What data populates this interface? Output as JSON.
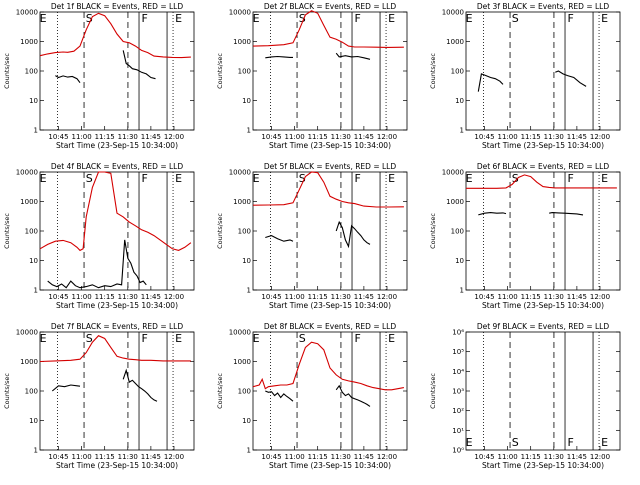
{
  "chart_data": [
    {
      "type": "line",
      "title": "Det 1f BLACK = Events, RED = LLD",
      "xlabel": "Start Time (23-Sep-15 10:34:00)",
      "ylabel": "Counts/sec",
      "yscale": "log",
      "ylim": [
        1,
        10000
      ],
      "xlim": [
        0,
        100
      ],
      "x_ticks": [
        "10:45",
        "11:00",
        "11:15",
        "11:30",
        "11:45",
        "12:00"
      ],
      "y_ticks": [
        "1",
        "10",
        "100",
        "1000",
        "10000"
      ],
      "markers": [
        "E",
        "S",
        "F",
        "E"
      ],
      "series": [
        {
          "name": "RED = LLD",
          "color": "#d40000",
          "x": [
            0,
            5,
            10,
            15,
            18,
            22,
            26,
            30,
            34,
            38,
            42,
            46,
            50,
            54,
            58,
            62,
            66,
            70,
            74,
            80,
            86,
            92,
            98
          ],
          "y": [
            330,
            380,
            420,
            440,
            430,
            470,
            700,
            2500,
            7000,
            9000,
            7500,
            4000,
            1800,
            1000,
            900,
            700,
            500,
            420,
            320,
            300,
            290,
            285,
            295
          ]
        },
        {
          "name": "BLACK = Events",
          "color": "#000000",
          "x": [
            10,
            12,
            15,
            18,
            21,
            24,
            26,
            null,
            54,
            56,
            58,
            60,
            63,
            66,
            69,
            72,
            75
          ],
          "y": [
            70,
            60,
            68,
            62,
            65,
            55,
            40,
            null,
            500,
            180,
            150,
            120,
            110,
            90,
            80,
            60,
            55
          ]
        }
      ]
    },
    {
      "type": "line",
      "title": "Det 2f BLACK = Events, RED = LLD",
      "xlabel": "Start Time (23-Sep-15 10:34:00)",
      "ylabel": "Counts/sec",
      "yscale": "log",
      "ylim": [
        1,
        10000
      ],
      "xlim": [
        0,
        100
      ],
      "x_ticks": [
        "10:45",
        "11:00",
        "11:15",
        "11:30",
        "11:45",
        "12:00"
      ],
      "y_ticks": [
        "1",
        "10",
        "100",
        "1000",
        "10000"
      ],
      "markers": [
        "E",
        "S",
        "F",
        "E"
      ],
      "series": [
        {
          "name": "RED = LLD",
          "color": "#d40000",
          "x": [
            0,
            10,
            20,
            26,
            30,
            34,
            38,
            42,
            46,
            50,
            54,
            58,
            62,
            66,
            72,
            80,
            88,
            98
          ],
          "y": [
            700,
            720,
            780,
            900,
            2500,
            8000,
            11000,
            9000,
            3500,
            1400,
            1200,
            950,
            700,
            650,
            650,
            640,
            630,
            640
          ]
        },
        {
          "name": "BLACK = Events",
          "color": "#000000",
          "x": [
            8,
            12,
            16,
            20,
            24,
            26,
            null,
            54,
            56,
            60,
            64,
            68,
            72,
            76
          ],
          "y": [
            280,
            300,
            310,
            300,
            290,
            290,
            null,
            400,
            300,
            330,
            300,
            310,
            280,
            250
          ]
        }
      ]
    },
    {
      "type": "line",
      "title": "Det 3f BLACK = Events, RED = LLD",
      "xlabel": "Start Time (23-Sep-15 10:34:00)",
      "ylabel": "Counts/sec",
      "yscale": "log",
      "ylim": [
        1,
        10000
      ],
      "xlim": [
        0,
        100
      ],
      "x_ticks": [
        "10:45",
        "11:00",
        "11:15",
        "11:30",
        "11:45",
        "12:00"
      ],
      "y_ticks": [
        "1",
        "10",
        "100",
        "1000",
        "10000"
      ],
      "markers": [
        "E",
        "S",
        "F",
        "E"
      ],
      "series": [
        {
          "name": "BLACK = Events",
          "color": "#000000",
          "x": [
            8,
            10,
            13,
            16,
            19,
            22,
            24,
            null,
            58,
            60,
            63,
            66,
            70,
            74,
            78
          ],
          "y": [
            20,
            80,
            70,
            60,
            55,
            45,
            35,
            null,
            90,
            100,
            80,
            70,
            60,
            40,
            30
          ]
        }
      ]
    },
    {
      "type": "line",
      "title": "Det 4f BLACK = Events, RED = LLD",
      "xlabel": "Start Time (23-Sep-15 10:34:00)",
      "ylabel": "Counts/sec",
      "yscale": "log",
      "ylim": [
        1,
        10000
      ],
      "xlim": [
        0,
        100
      ],
      "x_ticks": [
        "10:45",
        "11:00",
        "11:15",
        "11:30",
        "11:45",
        "12:00"
      ],
      "y_ticks": [
        "1",
        "10",
        "100",
        "1000",
        "10000"
      ],
      "markers": [
        "E",
        "S",
        "F",
        "E"
      ],
      "series": [
        {
          "name": "RED = LLD",
          "color": "#d40000",
          "x": [
            0,
            5,
            10,
            15,
            20,
            24,
            26,
            28,
            30,
            34,
            38,
            42,
            46,
            50,
            54,
            58,
            62,
            66,
            70,
            74,
            78,
            82,
            86,
            90,
            94,
            98
          ],
          "y": [
            25,
            35,
            45,
            48,
            40,
            28,
            22,
            25,
            300,
            3000,
            10000,
            10000,
            9000,
            400,
            300,
            200,
            150,
            110,
            90,
            70,
            50,
            35,
            25,
            22,
            28,
            40
          ]
        },
        {
          "name": "BLACK = Events",
          "color": "#000000",
          "x": [
            5,
            8,
            11,
            14,
            17,
            20,
            23,
            26,
            30,
            34,
            38,
            42,
            46,
            50,
            53,
            55,
            57,
            59,
            61,
            63,
            65,
            67,
            69
          ],
          "y": [
            2,
            1.5,
            1.3,
            1.6,
            1.2,
            2,
            1.4,
            1.2,
            1.3,
            1.5,
            1.2,
            1.4,
            1.3,
            1.6,
            1.5,
            50,
            12,
            8,
            4,
            3,
            1.8,
            2,
            1.5
          ]
        }
      ]
    },
    {
      "type": "line",
      "title": "Det 5f BLACK = Events, RED = LLD",
      "xlabel": "Start Time (23-Sep-15 10:34:00)",
      "ylabel": "Counts/sec",
      "yscale": "log",
      "ylim": [
        1,
        10000
      ],
      "xlim": [
        0,
        100
      ],
      "x_ticks": [
        "10:45",
        "11:00",
        "11:15",
        "11:30",
        "11:45",
        "12:00"
      ],
      "y_ticks": [
        "1",
        "10",
        "100",
        "1000",
        "10000"
      ],
      "markers": [
        "E",
        "S",
        "F",
        "E"
      ],
      "series": [
        {
          "name": "RED = LLD",
          "color": "#d40000",
          "x": [
            0,
            10,
            20,
            26,
            30,
            34,
            38,
            42,
            46,
            50,
            54,
            58,
            62,
            66,
            72,
            80,
            88,
            98
          ],
          "y": [
            750,
            760,
            780,
            900,
            2500,
            7000,
            10000,
            9500,
            4500,
            1500,
            1200,
            1000,
            900,
            850,
            700,
            650,
            650,
            660
          ]
        },
        {
          "name": "BLACK = Events",
          "color": "#000000",
          "x": [
            8,
            12,
            16,
            20,
            24,
            26,
            null,
            54,
            56,
            58,
            60,
            62,
            64,
            66,
            68,
            70,
            72,
            74,
            76
          ],
          "y": [
            60,
            70,
            55,
            45,
            50,
            45,
            null,
            100,
            200,
            130,
            50,
            30,
            150,
            120,
            90,
            70,
            50,
            40,
            35
          ]
        }
      ]
    },
    {
      "type": "line",
      "title": "Det 6f BLACK = Events, RED = LLD",
      "xlabel": "Start Time (23-Sep-15 10:34:00)",
      "ylabel": "Counts/sec",
      "yscale": "log",
      "ylim": [
        1,
        10000
      ],
      "xlim": [
        0,
        100
      ],
      "x_ticks": [
        "10:45",
        "11:00",
        "11:15",
        "11:30",
        "11:45",
        "12:00"
      ],
      "y_ticks": [
        "1",
        "10",
        "100",
        "1000",
        "10000"
      ],
      "markers": [
        "E",
        "S",
        "F",
        "E"
      ],
      "series": [
        {
          "name": "RED = LLD",
          "color": "#d40000",
          "x": [
            0,
            10,
            20,
            26,
            30,
            34,
            38,
            42,
            46,
            50,
            54,
            58,
            66,
            76,
            86,
            98
          ],
          "y": [
            2800,
            2800,
            2800,
            2900,
            3800,
            6500,
            8000,
            7000,
            4500,
            3200,
            3000,
            2900,
            2900,
            2900,
            2900,
            2900
          ]
        },
        {
          "name": "BLACK = Events",
          "color": "#000000",
          "x": [
            8,
            12,
            16,
            20,
            24,
            26,
            null,
            54,
            56,
            60,
            64,
            68,
            72,
            76
          ],
          "y": [
            350,
            400,
            420,
            400,
            410,
            390,
            null,
            400,
            420,
            410,
            400,
            390,
            380,
            350
          ]
        }
      ]
    },
    {
      "type": "line",
      "title": "Det 7f BLACK = Events, RED = LLD",
      "xlabel": "Start Time (23-Sep-15 10:34:00)",
      "ylabel": "Counts/sec",
      "yscale": "log",
      "ylim": [
        1,
        10000
      ],
      "xlim": [
        0,
        100
      ],
      "x_ticks": [
        "10:45",
        "11:00",
        "11:15",
        "11:30",
        "11:45",
        "12:00"
      ],
      "y_ticks": [
        "1",
        "10",
        "100",
        "1000",
        "10000"
      ],
      "markers": [
        "E",
        "S",
        "F",
        "E"
      ],
      "series": [
        {
          "name": "RED = LLD",
          "color": "#d40000",
          "x": [
            0,
            10,
            20,
            26,
            30,
            34,
            38,
            42,
            46,
            50,
            54,
            58,
            62,
            66,
            72,
            80,
            88,
            98
          ],
          "y": [
            1000,
            1050,
            1100,
            1200,
            2000,
            4500,
            7500,
            6000,
            3000,
            1500,
            1300,
            1200,
            1150,
            1100,
            1100,
            1050,
            1050,
            1050
          ]
        },
        {
          "name": "BLACK = Events",
          "color": "#000000",
          "x": [
            8,
            12,
            16,
            20,
            24,
            26,
            null,
            54,
            56,
            58,
            60,
            62,
            64,
            66,
            68,
            70,
            72,
            74,
            76
          ],
          "y": [
            100,
            150,
            140,
            160,
            150,
            145,
            null,
            250,
            500,
            200,
            230,
            180,
            140,
            120,
            100,
            80,
            60,
            50,
            45
          ]
        }
      ]
    },
    {
      "type": "line",
      "title": "Det 8f BLACK = Events, RED = LLD",
      "xlabel": "Start Time (23-Sep-15 10:34:00)",
      "ylabel": "Counts/sec",
      "yscale": "log",
      "ylim": [
        1,
        10000
      ],
      "xlim": [
        0,
        100
      ],
      "x_ticks": [
        "10:45",
        "11:00",
        "11:15",
        "11:30",
        "11:45",
        "12:00"
      ],
      "y_ticks": [
        "1",
        "10",
        "100",
        "1000",
        "10000"
      ],
      "markers": [
        "E",
        "S",
        "F",
        "E"
      ],
      "series": [
        {
          "name": "RED = LLD",
          "color": "#d40000",
          "x": [
            0,
            4,
            6,
            8,
            10,
            14,
            18,
            22,
            26,
            30,
            34,
            38,
            42,
            46,
            50,
            54,
            58,
            62,
            66,
            70,
            74,
            78,
            82,
            86,
            90,
            94,
            98
          ],
          "y": [
            140,
            160,
            250,
            120,
            140,
            150,
            160,
            160,
            180,
            800,
            3000,
            4500,
            4000,
            2500,
            600,
            350,
            250,
            220,
            200,
            180,
            150,
            130,
            120,
            110,
            110,
            120,
            130
          ]
        },
        {
          "name": "BLACK = Events",
          "color": "#000000",
          "x": [
            8,
            10,
            12,
            14,
            16,
            18,
            20,
            22,
            24,
            26,
            null,
            54,
            56,
            58,
            60,
            62,
            64,
            66,
            68,
            70,
            72,
            74,
            76
          ],
          "y": [
            100,
            90,
            95,
            70,
            85,
            60,
            80,
            65,
            55,
            45,
            null,
            110,
            150,
            90,
            70,
            80,
            60,
            55,
            50,
            45,
            40,
            35,
            30
          ]
        }
      ]
    },
    {
      "type": "line",
      "title": "Det 9f BLACK = Events, RED = LLD",
      "xlabel": "Start Time (23-Sep-15 10:34:00)",
      "ylabel": "Counts/sec",
      "yscale": "log",
      "ylim": [
        1,
        1000000
      ],
      "xlim": [
        0,
        100
      ],
      "x_ticks": [
        "10:45",
        "11:00",
        "11:15",
        "11:30",
        "11:45",
        "12:00"
      ],
      "y_ticks": [
        "10⁰",
        "10¹",
        "10²",
        "10³",
        "10⁴",
        "10⁵",
        "10⁶"
      ],
      "markers": [
        "E",
        "S",
        "F",
        "E"
      ],
      "series": []
    }
  ]
}
